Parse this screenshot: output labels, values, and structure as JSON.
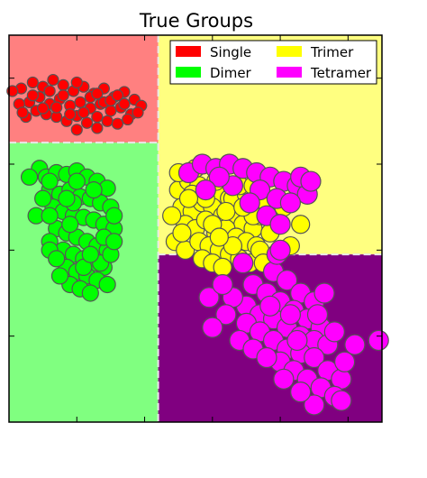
{
  "chart_data": {
    "type": "scatter",
    "title": "True Groups",
    "xlabel": "",
    "ylabel": "",
    "grid": false,
    "legend_placement": "top-right",
    "xlim": [
      0,
      5.5
    ],
    "ylim": [
      0,
      4.5
    ],
    "colors": {
      "Single": "#ff0000",
      "Dimer": "#00ff00",
      "Trimer": "#ffff00",
      "Tetramer": "#ff00ff"
    },
    "regions": [
      {
        "name": "Single",
        "x": [
          0,
          2.2
        ],
        "y": [
          3.25,
          4.5
        ],
        "color": "#ff8080"
      },
      {
        "name": "Dimer",
        "x": [
          0,
          2.2
        ],
        "y": [
          0,
          3.25
        ],
        "color": "#80ff80"
      },
      {
        "name": "Trimer",
        "x": [
          2.2,
          5.5
        ],
        "y": [
          1.95,
          4.5
        ],
        "color": "#ffff80"
      },
      {
        "name": "Tetramer",
        "x": [
          2.2,
          5.5
        ],
        "y": [
          0,
          1.95
        ],
        "color": "#800080"
      }
    ],
    "legend": [
      {
        "label": "Single",
        "color": "#ff0000"
      },
      {
        "label": "Trimer",
        "color": "#ffff00"
      },
      {
        "label": "Dimer",
        "color": "#00ff00"
      },
      {
        "label": "Tetramer",
        "color": "#ff00ff"
      }
    ],
    "series": [
      {
        "name": "Single",
        "marker_size": 6,
        "points": [
          [
            0.18,
            3.88
          ],
          [
            0.35,
            3.95
          ],
          [
            0.5,
            3.9
          ],
          [
            0.65,
            3.98
          ],
          [
            0.8,
            3.92
          ],
          [
            0.95,
            3.85
          ],
          [
            1.1,
            3.9
          ],
          [
            1.25,
            3.82
          ],
          [
            1.4,
            3.88
          ],
          [
            1.55,
            3.78
          ],
          [
            1.7,
            3.84
          ],
          [
            1.85,
            3.75
          ],
          [
            1.95,
            3.68
          ],
          [
            0.3,
            3.72
          ],
          [
            0.45,
            3.78
          ],
          [
            0.6,
            3.7
          ],
          [
            0.75,
            3.76
          ],
          [
            0.9,
            3.68
          ],
          [
            1.05,
            3.72
          ],
          [
            1.2,
            3.65
          ],
          [
            1.35,
            3.7
          ],
          [
            1.5,
            3.62
          ],
          [
            1.65,
            3.66
          ],
          [
            1.8,
            3.58
          ],
          [
            0.4,
            3.62
          ],
          [
            0.55,
            3.58
          ],
          [
            0.7,
            3.55
          ],
          [
            0.85,
            3.5
          ],
          [
            1.0,
            3.56
          ],
          [
            1.15,
            3.48
          ],
          [
            1.3,
            3.55
          ],
          [
            1.45,
            3.5
          ],
          [
            1.6,
            3.47
          ],
          [
            1.75,
            3.52
          ],
          [
            0.25,
            3.55
          ],
          [
            1.9,
            3.6
          ],
          [
            0.6,
            3.85
          ],
          [
            0.8,
            3.8
          ],
          [
            1.0,
            3.95
          ],
          [
            1.2,
            3.78
          ],
          [
            1.4,
            3.72
          ],
          [
            0.5,
            3.65
          ],
          [
            0.7,
            3.66
          ],
          [
            1.1,
            3.6
          ],
          [
            1.3,
            3.82
          ],
          [
            1.5,
            3.74
          ],
          [
            0.9,
            3.58
          ],
          [
            1.6,
            3.8
          ],
          [
            0.35,
            3.8
          ],
          [
            0.15,
            3.7
          ],
          [
            1.0,
            3.4
          ],
          [
            1.3,
            3.42
          ],
          [
            0.2,
            3.6
          ],
          [
            0.05,
            3.85
          ],
          [
            1.7,
            3.7
          ]
        ]
      },
      {
        "name": "Dimer",
        "marker_size": 9,
        "points": [
          [
            0.45,
            2.95
          ],
          [
            0.55,
            2.85
          ],
          [
            0.7,
            2.9
          ],
          [
            0.85,
            2.88
          ],
          [
            1.0,
            2.92
          ],
          [
            1.15,
            2.85
          ],
          [
            1.3,
            2.8
          ],
          [
            1.45,
            2.72
          ],
          [
            0.6,
            2.7
          ],
          [
            0.75,
            2.65
          ],
          [
            0.9,
            2.7
          ],
          [
            1.05,
            2.62
          ],
          [
            1.2,
            2.6
          ],
          [
            1.35,
            2.55
          ],
          [
            1.5,
            2.5
          ],
          [
            0.65,
            2.5
          ],
          [
            0.8,
            2.45
          ],
          [
            0.95,
            2.4
          ],
          [
            1.1,
            2.38
          ],
          [
            1.25,
            2.35
          ],
          [
            1.4,
            2.3
          ],
          [
            1.55,
            2.25
          ],
          [
            0.7,
            2.25
          ],
          [
            0.85,
            2.2
          ],
          [
            1.0,
            2.15
          ],
          [
            1.15,
            2.1
          ],
          [
            1.3,
            2.05
          ],
          [
            1.45,
            2.0
          ],
          [
            0.8,
            2.0
          ],
          [
            0.95,
            1.95
          ],
          [
            1.1,
            1.9
          ],
          [
            1.25,
            1.85
          ],
          [
            1.4,
            1.8
          ],
          [
            0.85,
            1.8
          ],
          [
            1.0,
            1.75
          ],
          [
            1.15,
            1.7
          ],
          [
            1.3,
            1.65
          ],
          [
            0.9,
            1.6
          ],
          [
            1.05,
            1.55
          ],
          [
            1.2,
            1.5
          ],
          [
            1.35,
            1.85
          ],
          [
            0.75,
            1.7
          ],
          [
            1.5,
            1.95
          ],
          [
            0.6,
            2.1
          ],
          [
            1.55,
            2.4
          ],
          [
            0.5,
            2.6
          ],
          [
            1.45,
            1.6
          ],
          [
            1.1,
            1.8
          ],
          [
            0.95,
            2.55
          ],
          [
            0.4,
            2.4
          ],
          [
            0.6,
            2.8
          ],
          [
            1.0,
            2.8
          ],
          [
            0.3,
            2.85
          ],
          [
            0.6,
            2.0
          ],
          [
            1.25,
            2.7
          ],
          [
            1.4,
            2.15
          ],
          [
            1.55,
            2.1
          ],
          [
            0.85,
            2.6
          ],
          [
            1.2,
            1.95
          ],
          [
            0.7,
            1.9
          ],
          [
            0.9,
            2.3
          ],
          [
            0.6,
            2.4
          ]
        ]
      },
      {
        "name": "Trimer",
        "marker_size": 10,
        "points": [
          [
            2.5,
            2.7
          ],
          [
            2.65,
            2.8
          ],
          [
            2.8,
            2.75
          ],
          [
            2.95,
            2.7
          ],
          [
            3.1,
            2.65
          ],
          [
            3.25,
            2.6
          ],
          [
            3.4,
            2.55
          ],
          [
            3.55,
            2.5
          ],
          [
            2.55,
            2.5
          ],
          [
            2.7,
            2.45
          ],
          [
            2.85,
            2.55
          ],
          [
            3.0,
            2.5
          ],
          [
            3.15,
            2.4
          ],
          [
            3.3,
            2.35
          ],
          [
            3.45,
            2.3
          ],
          [
            3.6,
            2.25
          ],
          [
            2.6,
            2.3
          ],
          [
            2.75,
            2.25
          ],
          [
            2.9,
            2.35
          ],
          [
            3.05,
            2.2
          ],
          [
            3.2,
            2.25
          ],
          [
            3.35,
            2.15
          ],
          [
            3.5,
            2.1
          ],
          [
            3.65,
            2.05
          ],
          [
            2.45,
            2.1
          ],
          [
            2.6,
            2.0
          ],
          [
            2.8,
            2.1
          ],
          [
            2.95,
            2.05
          ],
          [
            3.1,
            2.0
          ],
          [
            3.25,
            1.95
          ],
          [
            3.4,
            1.9
          ],
          [
            3.55,
            1.85
          ],
          [
            3.7,
            2.0
          ],
          [
            2.85,
            1.9
          ],
          [
            3.0,
            1.85
          ],
          [
            3.15,
            1.8
          ],
          [
            3.3,
            2.6
          ],
          [
            3.5,
            2.65
          ],
          [
            3.7,
            2.4
          ],
          [
            2.4,
            2.4
          ],
          [
            3.05,
            2.8
          ],
          [
            3.85,
            2.2
          ],
          [
            2.7,
            2.65
          ],
          [
            3.2,
            2.45
          ],
          [
            3.4,
            2.75
          ],
          [
            3.0,
            2.3
          ],
          [
            2.55,
            2.2
          ],
          [
            3.6,
            2.4
          ],
          [
            4.15,
            2.05
          ],
          [
            4.3,
            2.3
          ],
          [
            3.75,
            1.85
          ],
          [
            3.3,
            2.05
          ],
          [
            2.9,
            2.6
          ],
          [
            3.45,
            2.5
          ],
          [
            3.1,
            2.15
          ],
          [
            2.65,
            2.6
          ],
          [
            3.8,
            2.55
          ],
          [
            4.05,
            2.5
          ],
          [
            2.5,
            2.9
          ],
          [
            2.75,
            2.95
          ],
          [
            3.6,
            2.75
          ]
        ]
      },
      {
        "name": "Tetramer",
        "marker_size": 11,
        "points": [
          [
            2.65,
            2.9
          ],
          [
            2.85,
            3.0
          ],
          [
            3.05,
            2.95
          ],
          [
            3.25,
            3.0
          ],
          [
            3.45,
            2.95
          ],
          [
            3.65,
            2.9
          ],
          [
            3.85,
            2.85
          ],
          [
            4.05,
            2.8
          ],
          [
            4.25,
            2.75
          ],
          [
            4.4,
            2.65
          ],
          [
            3.7,
            2.7
          ],
          [
            3.95,
            2.6
          ],
          [
            4.15,
            2.55
          ],
          [
            3.55,
            2.55
          ],
          [
            3.8,
            2.4
          ],
          [
            4.0,
            2.3
          ],
          [
            3.3,
            2.75
          ],
          [
            3.1,
            2.85
          ],
          [
            2.9,
            2.7
          ],
          [
            4.3,
            2.85
          ],
          [
            4.45,
            2.8
          ],
          [
            3.9,
            1.75
          ],
          [
            4.1,
            1.65
          ],
          [
            4.3,
            1.5
          ],
          [
            4.5,
            1.4
          ],
          [
            3.6,
            1.6
          ],
          [
            3.8,
            1.5
          ],
          [
            4.0,
            1.4
          ],
          [
            4.2,
            1.3
          ],
          [
            4.4,
            1.2
          ],
          [
            4.6,
            1.1
          ],
          [
            3.5,
            1.35
          ],
          [
            3.7,
            1.25
          ],
          [
            3.9,
            1.2
          ],
          [
            4.1,
            1.1
          ],
          [
            4.3,
            1.0
          ],
          [
            4.5,
            0.95
          ],
          [
            4.7,
            0.9
          ],
          [
            3.3,
            1.45
          ],
          [
            3.5,
            1.15
          ],
          [
            3.7,
            1.05
          ],
          [
            3.9,
            0.95
          ],
          [
            4.1,
            0.85
          ],
          [
            4.3,
            0.8
          ],
          [
            4.5,
            0.75
          ],
          [
            4.7,
            0.6
          ],
          [
            4.9,
            0.5
          ],
          [
            4.0,
            0.7
          ],
          [
            4.2,
            0.6
          ],
          [
            4.4,
            0.5
          ],
          [
            4.6,
            0.4
          ],
          [
            4.8,
            0.3
          ],
          [
            4.5,
            0.2
          ],
          [
            3.2,
            1.25
          ],
          [
            3.0,
            1.1
          ],
          [
            3.4,
            0.95
          ],
          [
            3.6,
            0.85
          ],
          [
            3.8,
            0.75
          ],
          [
            4.3,
            0.35
          ],
          [
            4.9,
            0.25
          ],
          [
            5.1,
            0.9
          ],
          [
            5.45,
            0.95
          ],
          [
            3.45,
            1.85
          ],
          [
            3.95,
            1.95
          ],
          [
            4.0,
            2.0
          ],
          [
            4.65,
            1.5
          ],
          [
            4.8,
            1.05
          ],
          [
            4.95,
            0.7
          ],
          [
            2.95,
            1.45
          ],
          [
            3.15,
            1.6
          ],
          [
            4.15,
            1.25
          ],
          [
            4.55,
            1.25
          ],
          [
            3.85,
            1.35
          ],
          [
            4.25,
            0.95
          ],
          [
            4.05,
            0.5
          ]
        ]
      }
    ]
  }
}
